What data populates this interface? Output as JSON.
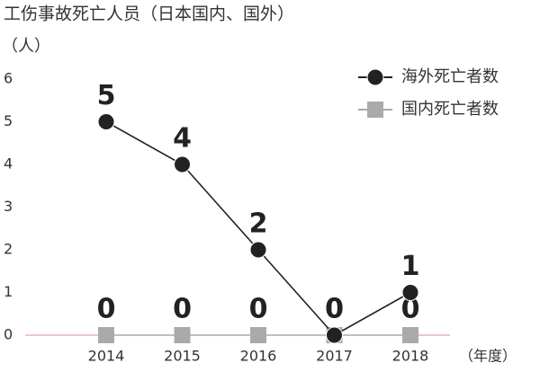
{
  "chart_data": {
    "type": "line",
    "title": "工伤事故死亡人员（日本国内、国外）",
    "y_label": "（人）",
    "x_label": "（年度）",
    "categories": [
      "2014",
      "2015",
      "2016",
      "2017",
      "2018"
    ],
    "series": [
      {
        "name": "海外死亡者数",
        "color": "#222222",
        "marker": "circle",
        "values": [
          5,
          4,
          2,
          0,
          1
        ]
      },
      {
        "name": "国内死亡者数",
        "color": "#aaaaaa",
        "marker": "square",
        "values": [
          0,
          0,
          0,
          0,
          0
        ]
      }
    ],
    "ylim": [
      0,
      6
    ],
    "yticks": [
      0,
      1,
      2,
      3,
      4,
      5,
      6
    ],
    "grid": false,
    "data_labels": true,
    "legend": "top-right",
    "baseline_color": "#d98aa0"
  }
}
